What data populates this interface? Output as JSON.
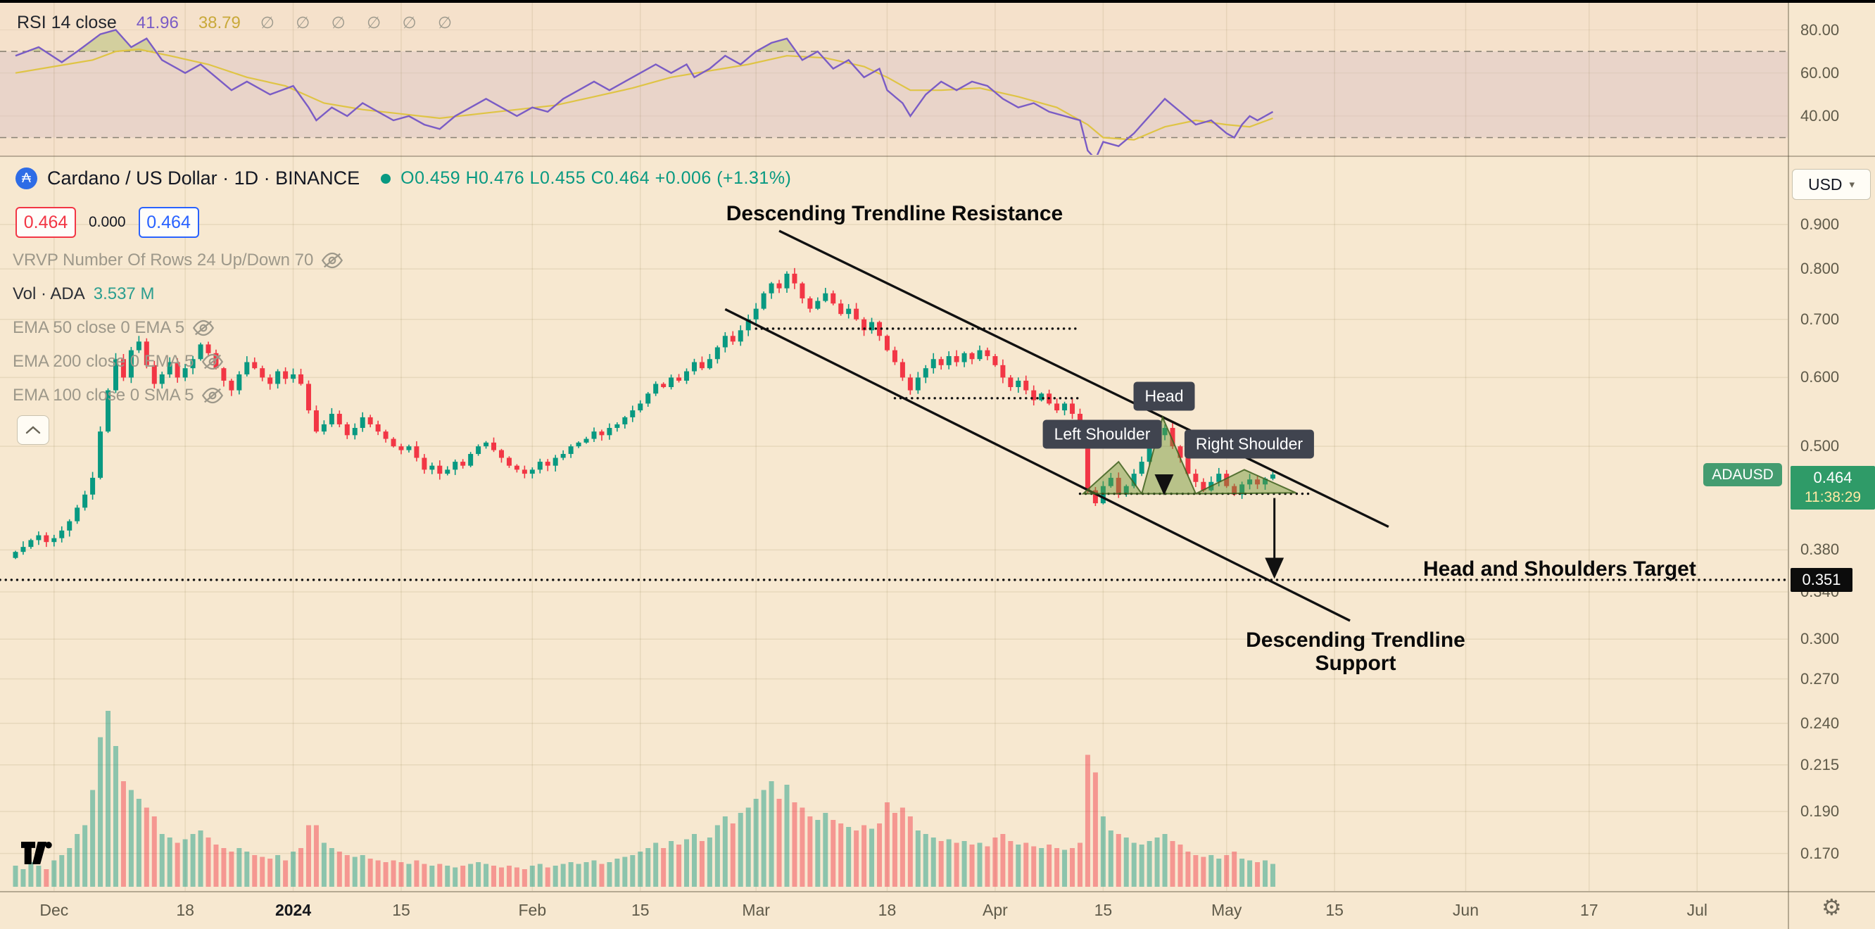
{
  "rsi_panel": {
    "legend_title": "RSI 14 close",
    "rsi_value": "41.96",
    "ma_value": "38.79",
    "disabled_markers": "∅ ∅ ∅ ∅ ∅ ∅",
    "axis_labels": [
      {
        "value": 80,
        "label": "80.00"
      },
      {
        "value": 60,
        "label": "60.00"
      },
      {
        "value": 40,
        "label": "40.00"
      }
    ],
    "upper_band": 70,
    "lower_band": 30,
    "rsi_points": [
      [
        0,
        68
      ],
      [
        3,
        72
      ],
      [
        6,
        65
      ],
      [
        8,
        70
      ],
      [
        11,
        78
      ],
      [
        13,
        80
      ],
      [
        15,
        72
      ],
      [
        17,
        76
      ],
      [
        19,
        66
      ],
      [
        22,
        60
      ],
      [
        24,
        64
      ],
      [
        26,
        58
      ],
      [
        28,
        52
      ],
      [
        30,
        56
      ],
      [
        33,
        50
      ],
      [
        36,
        54
      ],
      [
        38,
        44
      ],
      [
        39,
        38
      ],
      [
        41,
        44
      ],
      [
        43,
        40
      ],
      [
        45,
        46
      ],
      [
        47,
        42
      ],
      [
        49,
        38
      ],
      [
        51,
        40
      ],
      [
        53,
        36
      ],
      [
        55,
        34
      ],
      [
        57,
        40
      ],
      [
        59,
        44
      ],
      [
        61,
        48
      ],
      [
        63,
        44
      ],
      [
        65,
        40
      ],
      [
        67,
        44
      ],
      [
        69,
        42
      ],
      [
        71,
        48
      ],
      [
        73,
        52
      ],
      [
        75,
        56
      ],
      [
        77,
        52
      ],
      [
        79,
        56
      ],
      [
        81,
        60
      ],
      [
        83,
        64
      ],
      [
        85,
        60
      ],
      [
        87,
        64
      ],
      [
        88,
        58
      ],
      [
        90,
        62
      ],
      [
        92,
        68
      ],
      [
        94,
        64
      ],
      [
        96,
        70
      ],
      [
        98,
        74
      ],
      [
        100,
        76
      ],
      [
        102,
        66
      ],
      [
        104,
        70
      ],
      [
        106,
        62
      ],
      [
        108,
        66
      ],
      [
        110,
        58
      ],
      [
        112,
        62
      ],
      [
        113,
        52
      ],
      [
        115,
        46
      ],
      [
        116,
        40
      ],
      [
        118,
        50
      ],
      [
        120,
        56
      ],
      [
        122,
        52
      ],
      [
        124,
        56
      ],
      [
        126,
        54
      ],
      [
        128,
        48
      ],
      [
        130,
        44
      ],
      [
        132,
        46
      ],
      [
        134,
        42
      ],
      [
        136,
        40
      ],
      [
        138,
        38
      ],
      [
        139,
        24
      ],
      [
        140,
        20
      ],
      [
        141,
        28
      ],
      [
        143,
        26
      ],
      [
        145,
        32
      ],
      [
        147,
        40
      ],
      [
        149,
        48
      ],
      [
        151,
        42
      ],
      [
        153,
        36
      ],
      [
        155,
        38
      ],
      [
        157,
        32
      ],
      [
        158,
        30
      ],
      [
        159,
        36
      ],
      [
        160,
        40
      ],
      [
        161,
        38
      ],
      [
        162,
        40
      ],
      [
        163,
        42
      ]
    ],
    "ma_points": [
      [
        0,
        60
      ],
      [
        5,
        63
      ],
      [
        10,
        66
      ],
      [
        13,
        70
      ],
      [
        16,
        71
      ],
      [
        20,
        68
      ],
      [
        25,
        64
      ],
      [
        30,
        58
      ],
      [
        35,
        54
      ],
      [
        40,
        46
      ],
      [
        45,
        43
      ],
      [
        50,
        41
      ],
      [
        55,
        39
      ],
      [
        60,
        41
      ],
      [
        65,
        43
      ],
      [
        70,
        45
      ],
      [
        75,
        49
      ],
      [
        80,
        53
      ],
      [
        85,
        58
      ],
      [
        90,
        61
      ],
      [
        95,
        64
      ],
      [
        100,
        68
      ],
      [
        105,
        67
      ],
      [
        110,
        63
      ],
      [
        113,
        58
      ],
      [
        116,
        52
      ],
      [
        120,
        52
      ],
      [
        125,
        53
      ],
      [
        130,
        49
      ],
      [
        135,
        44
      ],
      [
        139,
        36
      ],
      [
        141,
        30
      ],
      [
        145,
        29
      ],
      [
        149,
        35
      ],
      [
        153,
        38
      ],
      [
        157,
        36
      ],
      [
        160,
        35
      ],
      [
        163,
        39
      ]
    ]
  },
  "symbol_header": {
    "title": "Cardano / US Dollar · 1D · BINANCE",
    "ohlc": "O0.459  H0.476  L0.455  C0.464  +0.006 (+1.31%)",
    "sell_price": "0.464",
    "spread": "0.000",
    "buy_price": "0.464"
  },
  "indicators": {
    "vrvp": "VRVP Number Of Rows 24 Up/Down 70",
    "volume_label": "Vol · ADA",
    "volume_value": "3.537 M",
    "ema50": "EMA 50 close 0 EMA 5",
    "ema200": "EMA 200 close 0 EMA 5",
    "ema100": "EMA 100 close 0 SMA 5"
  },
  "annotations": {
    "resistance_label": "Descending Trendline Resistance",
    "support_label": "Descending Trendline Support",
    "target_label": "Head and Shoulders Target",
    "head_label": "Head",
    "left_shoulder_label": "Left Shoulder",
    "right_shoulder_label": "Right Shoulder"
  },
  "price_axis": {
    "currency": "USD",
    "labels": [
      {
        "price": 0.9,
        "label": "0.900"
      },
      {
        "price": 0.8,
        "label": "0.800"
      },
      {
        "price": 0.7,
        "label": "0.700"
      },
      {
        "price": 0.6,
        "label": "0.600"
      },
      {
        "price": 0.5,
        "label": "0.500"
      },
      {
        "price": 0.38,
        "label": "0.380"
      },
      {
        "price": 0.34,
        "label": "0.340"
      },
      {
        "price": 0.3,
        "label": "0.300"
      },
      {
        "price": 0.27,
        "label": "0.270"
      },
      {
        "price": 0.24,
        "label": "0.240"
      },
      {
        "price": 0.215,
        "label": "0.215"
      },
      {
        "price": 0.19,
        "label": "0.190"
      },
      {
        "price": 0.17,
        "label": "0.170"
      }
    ],
    "price_tag": {
      "symbol": "ADAUSD",
      "price": "0.464",
      "countdown": "11:38:29",
      "value": 0.464
    },
    "target_tag": {
      "label": "0.351",
      "value": 0.351
    }
  },
  "time_axis": {
    "ticks": [
      {
        "label": "Dec",
        "day": 5
      },
      {
        "label": "18",
        "day": 22
      },
      {
        "label": "2024",
        "day": 36,
        "bold": true
      },
      {
        "label": "15",
        "day": 50
      },
      {
        "label": "Feb",
        "day": 67
      },
      {
        "label": "15",
        "day": 81
      },
      {
        "label": "Mar",
        "day": 96
      },
      {
        "label": "18",
        "day": 113
      },
      {
        "label": "Apr",
        "day": 127
      },
      {
        "label": "15",
        "day": 141
      },
      {
        "label": "May",
        "day": 157
      },
      {
        "label": "15",
        "day": 171
      },
      {
        "label": "Jun",
        "day": 188
      },
      {
        "label": "17",
        "day": 204
      },
      {
        "label": "Jul",
        "day": 218
      }
    ],
    "gear_icon": "⚙"
  },
  "chart_data": {
    "type": "candlestick+volume",
    "symbol": "ADAUSD",
    "interval": "1D",
    "exchange": "BINANCE",
    "last_price": 0.464,
    "closes": [
      0.378,
      0.383,
      0.39,
      0.395,
      0.388,
      0.392,
      0.4,
      0.41,
      0.425,
      0.44,
      0.46,
      0.52,
      0.58,
      0.63,
      0.6,
      0.645,
      0.66,
      0.62,
      0.59,
      0.605,
      0.625,
      0.6,
      0.615,
      0.63,
      0.655,
      0.64,
      0.615,
      0.595,
      0.58,
      0.605,
      0.625,
      0.615,
      0.6,
      0.59,
      0.61,
      0.598,
      0.605,
      0.59,
      0.55,
      0.52,
      0.53,
      0.545,
      0.53,
      0.515,
      0.525,
      0.54,
      0.53,
      0.52,
      0.51,
      0.5,
      0.495,
      0.5,
      0.485,
      0.47,
      0.475,
      0.465,
      0.47,
      0.48,
      0.475,
      0.49,
      0.5,
      0.505,
      0.495,
      0.485,
      0.475,
      0.47,
      0.465,
      0.47,
      0.48,
      0.475,
      0.485,
      0.49,
      0.5,
      0.505,
      0.51,
      0.52,
      0.515,
      0.525,
      0.53,
      0.54,
      0.55,
      0.56,
      0.575,
      0.59,
      0.585,
      0.6,
      0.595,
      0.61,
      0.625,
      0.615,
      0.63,
      0.65,
      0.67,
      0.66,
      0.68,
      0.7,
      0.72,
      0.75,
      0.77,
      0.76,
      0.79,
      0.77,
      0.74,
      0.72,
      0.735,
      0.75,
      0.73,
      0.71,
      0.72,
      0.7,
      0.68,
      0.695,
      0.67,
      0.645,
      0.625,
      0.6,
      0.58,
      0.6,
      0.615,
      0.63,
      0.62,
      0.635,
      0.625,
      0.64,
      0.63,
      0.645,
      0.635,
      0.62,
      0.6,
      0.585,
      0.595,
      0.58,
      0.565,
      0.575,
      0.56,
      0.55,
      0.56,
      0.545,
      0.53,
      0.445,
      0.43,
      0.45,
      0.46,
      0.44,
      0.45,
      0.465,
      0.48,
      0.5,
      0.515,
      0.525,
      0.5,
      0.485,
      0.465,
      0.455,
      0.445,
      0.455,
      0.465,
      0.45,
      0.44,
      0.452,
      0.458,
      0.452,
      0.459,
      0.464
    ],
    "volumes": [
      0.12,
      0.1,
      0.14,
      0.12,
      0.1,
      0.15,
      0.18,
      0.22,
      0.3,
      0.35,
      0.55,
      0.85,
      1.0,
      0.8,
      0.6,
      0.55,
      0.5,
      0.45,
      0.4,
      0.3,
      0.28,
      0.25,
      0.27,
      0.3,
      0.32,
      0.28,
      0.24,
      0.22,
      0.2,
      0.22,
      0.2,
      0.18,
      0.17,
      0.16,
      0.18,
      0.15,
      0.2,
      0.22,
      0.35,
      0.35,
      0.25,
      0.22,
      0.2,
      0.18,
      0.17,
      0.18,
      0.16,
      0.15,
      0.14,
      0.15,
      0.14,
      0.13,
      0.15,
      0.13,
      0.12,
      0.13,
      0.12,
      0.11,
      0.12,
      0.13,
      0.14,
      0.13,
      0.12,
      0.11,
      0.12,
      0.11,
      0.1,
      0.12,
      0.13,
      0.11,
      0.12,
      0.13,
      0.14,
      0.13,
      0.14,
      0.15,
      0.13,
      0.14,
      0.16,
      0.17,
      0.18,
      0.2,
      0.22,
      0.25,
      0.22,
      0.26,
      0.24,
      0.27,
      0.3,
      0.26,
      0.28,
      0.35,
      0.4,
      0.36,
      0.42,
      0.45,
      0.5,
      0.55,
      0.6,
      0.5,
      0.58,
      0.48,
      0.45,
      0.4,
      0.38,
      0.42,
      0.38,
      0.36,
      0.34,
      0.32,
      0.35,
      0.33,
      0.36,
      0.48,
      0.42,
      0.45,
      0.4,
      0.32,
      0.3,
      0.28,
      0.26,
      0.27,
      0.25,
      0.26,
      0.24,
      0.25,
      0.23,
      0.28,
      0.3,
      0.26,
      0.24,
      0.25,
      0.23,
      0.22,
      0.24,
      0.22,
      0.21,
      0.22,
      0.25,
      0.75,
      0.65,
      0.4,
      0.32,
      0.3,
      0.28,
      0.25,
      0.24,
      0.26,
      0.28,
      0.3,
      0.26,
      0.24,
      0.2,
      0.18,
      0.17,
      0.18,
      0.16,
      0.18,
      0.2,
      0.16,
      0.15,
      0.14,
      0.15,
      0.13
    ],
    "trendlines": [
      {
        "name": "resistance",
        "from": [
          99,
          0.885
        ],
        "to": [
          178,
          0.404
        ]
      },
      {
        "name": "support",
        "from": [
          92,
          0.719
        ],
        "to": [
          173,
          0.315
        ]
      }
    ],
    "dotted_levels": [
      {
        "name": "upper-consolidation",
        "price": 0.683,
        "from": 96,
        "to": 138
      },
      {
        "name": "lower-consolidation",
        "price": 0.568,
        "from": 114,
        "to": 138
      },
      {
        "name": "neckline",
        "price": 0.441,
        "from": 138,
        "to": 168
      },
      {
        "name": "target",
        "price": 0.351,
        "from": -2,
        "to": 230
      }
    ],
    "pattern": {
      "left_shoulder": [
        [
          138.4,
          0.441
        ],
        [
          143,
          0.48
        ],
        [
          146,
          0.441
        ]
      ],
      "head": [
        [
          146,
          0.441
        ],
        [
          148.7,
          0.54
        ],
        [
          153,
          0.441
        ]
      ],
      "right_shoulder": [
        [
          153,
          0.441
        ],
        [
          159.3,
          0.47
        ],
        [
          166,
          0.442
        ]
      ]
    },
    "arrows": [
      {
        "x": 163.2,
        "from": 0.436,
        "to": 0.356
      },
      {
        "x": 148.9,
        "from": 0.463,
        "to": 0.444
      }
    ],
    "colors": {
      "up": "#089981",
      "down": "#f23645",
      "rsi": "#7a5cc5",
      "rsi_ma": "#dfc445",
      "background": "#f7e8d0",
      "annotation": "#111111"
    }
  }
}
